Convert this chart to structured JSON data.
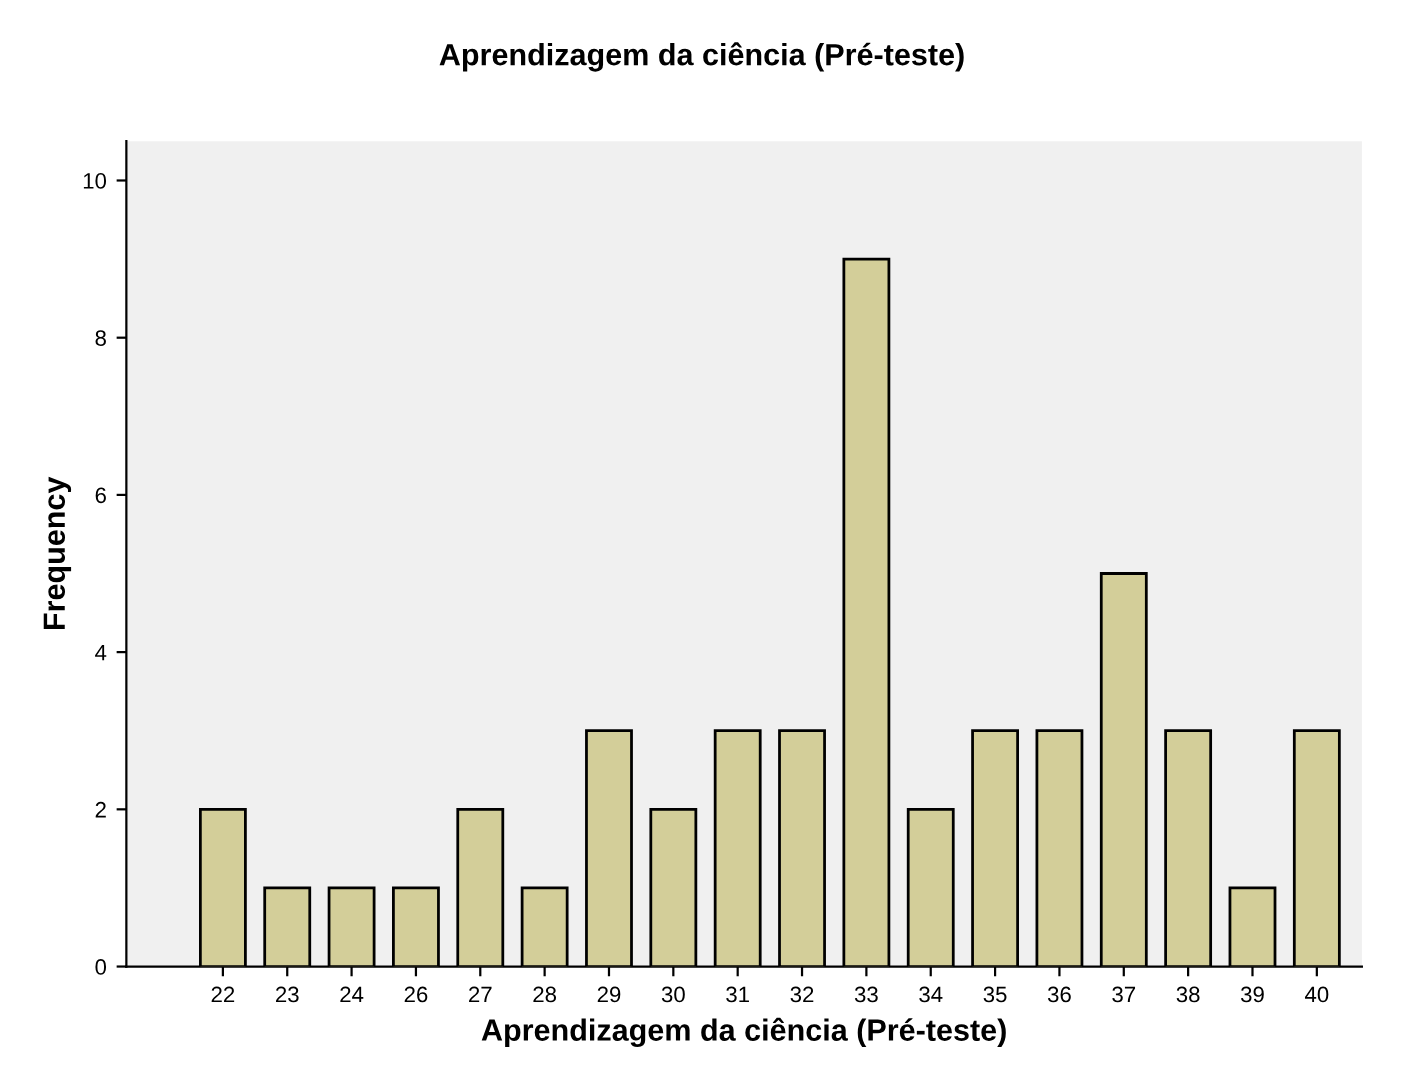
{
  "chart_data": {
    "type": "bar",
    "title": "Aprendizagem da ciência (Pré-teste)",
    "xlabel": "Aprendizagem da ciência (Pré-teste)",
    "ylabel": "Frequency",
    "categories": [
      "22",
      "23",
      "24",
      "26",
      "27",
      "28",
      "29",
      "30",
      "31",
      "32",
      "33",
      "34",
      "35",
      "36",
      "37",
      "38",
      "39",
      "40"
    ],
    "values": [
      2,
      1,
      1,
      1,
      2,
      1,
      3,
      2,
      3,
      3,
      9,
      2,
      3,
      3,
      5,
      3,
      1,
      3
    ],
    "color": "#d3ce99",
    "ylim": [
      0,
      10.5
    ],
    "yticks": [
      0,
      2,
      4,
      6,
      8,
      10
    ],
    "grid": false,
    "legend": false
  }
}
